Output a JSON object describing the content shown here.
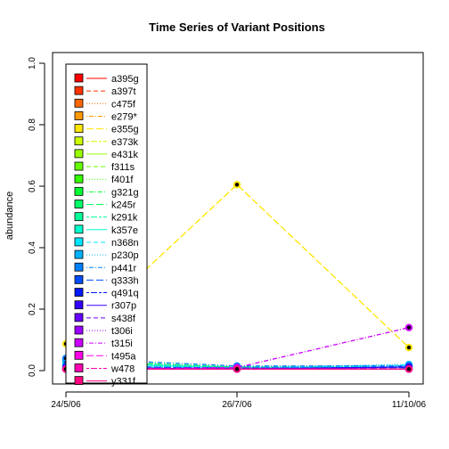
{
  "chart_data": {
    "type": "line",
    "title": "Time Series of Variant Positions",
    "xlabel": "",
    "ylabel": "abundance",
    "x": [
      "24/5/06",
      "26/7/06",
      "11/10/06"
    ],
    "ylim": [
      0,
      1
    ],
    "yticks": [
      "0.0",
      "0.2",
      "0.4",
      "0.6",
      "0.8",
      "1.0"
    ],
    "grid": false,
    "legend_position": "top-left",
    "series": [
      {
        "name": "a395g",
        "color": "#FF0000",
        "dash": "solid",
        "values": [
          0.005,
          0.005,
          0.005
        ]
      },
      {
        "name": "a397t",
        "color": "#FF3300",
        "dash": "dashed",
        "values": [
          0.005,
          0.005,
          0.005
        ]
      },
      {
        "name": "c475f",
        "color": "#FF6600",
        "dash": "dotted",
        "values": [
          0.005,
          0.005,
          0.005
        ]
      },
      {
        "name": "e279*",
        "color": "#FF9900",
        "dash": "dotdash",
        "values": [
          0.005,
          0.005,
          0.005
        ]
      },
      {
        "name": "e355g",
        "color": "#FFE600",
        "dash": "longdash",
        "values": [
          0.087,
          0.605,
          0.075
        ]
      },
      {
        "name": "e373k",
        "color": "#CCFF00",
        "dash": "twodash",
        "values": [
          0.005,
          0.005,
          0.005
        ]
      },
      {
        "name": "e431k",
        "color": "#99FF00",
        "dash": "solid",
        "values": [
          0.005,
          0.005,
          0.005
        ]
      },
      {
        "name": "f311s",
        "color": "#66FF00",
        "dash": "dashed",
        "values": [
          0.005,
          0.005,
          0.005
        ]
      },
      {
        "name": "f401f",
        "color": "#33FF00",
        "dash": "dotted",
        "values": [
          0.005,
          0.005,
          0.005
        ]
      },
      {
        "name": "g321g",
        "color": "#00FF33",
        "dash": "dotdash",
        "values": [
          0.035,
          0.01,
          0.015
        ]
      },
      {
        "name": "k245r",
        "color": "#00FF66",
        "dash": "longdash",
        "values": [
          0.03,
          0.012,
          0.01
        ]
      },
      {
        "name": "k291k",
        "color": "#00FF99",
        "dash": "twodash",
        "values": [
          0.005,
          0.005,
          0.005
        ]
      },
      {
        "name": "k357e",
        "color": "#00FFCC",
        "dash": "solid",
        "values": [
          0.025,
          0.008,
          0.012
        ]
      },
      {
        "name": "n368n",
        "color": "#00E5FF",
        "dash": "dashed",
        "values": [
          0.015,
          0.008,
          0.018
        ]
      },
      {
        "name": "p230p",
        "color": "#00B2FF",
        "dash": "dotted",
        "values": [
          0.03,
          0.01,
          0.02
        ]
      },
      {
        "name": "p441r",
        "color": "#0080FF",
        "dash": "dotdash",
        "values": [
          0.04,
          0.015,
          0.015
        ]
      },
      {
        "name": "q333h",
        "color": "#004DFF",
        "dash": "longdash",
        "values": [
          0.015,
          0.008,
          0.01
        ]
      },
      {
        "name": "q491q",
        "color": "#0019FF",
        "dash": "twodash",
        "values": [
          0.005,
          0.005,
          0.005
        ]
      },
      {
        "name": "r307p",
        "color": "#3300FF",
        "dash": "solid",
        "values": [
          0.01,
          0.005,
          0.012
        ]
      },
      {
        "name": "s438f",
        "color": "#6600FF",
        "dash": "dashed",
        "values": [
          0.005,
          0.005,
          0.005
        ]
      },
      {
        "name": "t306i",
        "color": "#9900FF",
        "dash": "dotted",
        "values": [
          0.005,
          0.01,
          0.005
        ]
      },
      {
        "name": "t315i",
        "color": "#CC00FF",
        "dash": "dotdash",
        "values": [
          0.005,
          0.01,
          0.14
        ]
      },
      {
        "name": "t495a",
        "color": "#FF00E6",
        "dash": "longdash",
        "values": [
          0.005,
          0.005,
          0.005
        ]
      },
      {
        "name": "w478",
        "color": "#FF00B3",
        "dash": "twodash",
        "values": [
          0.005,
          0.005,
          0.005
        ]
      },
      {
        "name": "y331f",
        "color": "#FF0080",
        "dash": "solid",
        "values": [
          0.005,
          0.005,
          0.005
        ]
      }
    ]
  }
}
